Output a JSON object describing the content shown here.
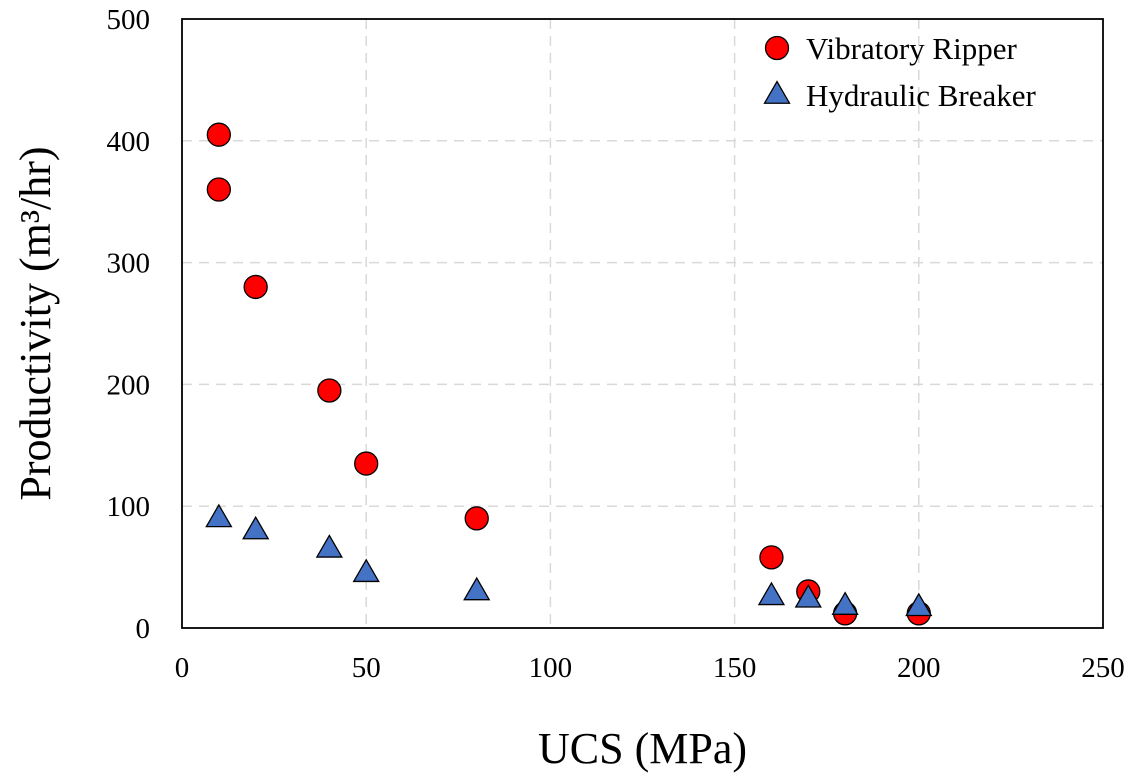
{
  "chart_data": {
    "type": "scatter",
    "title": "",
    "xlabel": "UCS (MPa)",
    "ylabel": "Productivity (m³/hr)",
    "xlim": [
      0,
      250
    ],
    "ylim": [
      0,
      500
    ],
    "xticks": [
      0,
      50,
      100,
      150,
      200,
      250
    ],
    "yticks": [
      0,
      100,
      200,
      300,
      400,
      500
    ],
    "grid": true,
    "legend_position": "top-right",
    "series": [
      {
        "name": "Vibratory Ripper",
        "marker": "circle",
        "color": "#ff0000",
        "points": [
          {
            "x": 10,
            "y": 405
          },
          {
            "x": 10,
            "y": 360
          },
          {
            "x": 20,
            "y": 280
          },
          {
            "x": 40,
            "y": 195
          },
          {
            "x": 50,
            "y": 135
          },
          {
            "x": 80,
            "y": 90
          },
          {
            "x": 160,
            "y": 58
          },
          {
            "x": 170,
            "y": 30
          },
          {
            "x": 180,
            "y": 12
          },
          {
            "x": 200,
            "y": 12
          }
        ]
      },
      {
        "name": "Hydraulic Breaker",
        "marker": "triangle",
        "color": "#4472c4",
        "points": [
          {
            "x": 10,
            "y": 90
          },
          {
            "x": 20,
            "y": 80
          },
          {
            "x": 40,
            "y": 65
          },
          {
            "x": 50,
            "y": 45
          },
          {
            "x": 80,
            "y": 30
          },
          {
            "x": 160,
            "y": 26
          },
          {
            "x": 170,
            "y": 24
          },
          {
            "x": 180,
            "y": 18
          },
          {
            "x": 200,
            "y": 17
          }
        ]
      }
    ]
  }
}
